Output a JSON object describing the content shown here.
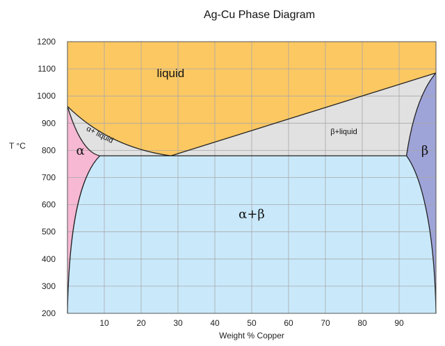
{
  "chart_data": {
    "type": "phase-diagram",
    "title": "Ag-Cu Phase Diagram",
    "xlabel": "Weight % Copper",
    "ylabel": "T °C",
    "xlim": [
      0,
      100
    ],
    "ylim": [
      200,
      1200
    ],
    "x_ticks": [
      10,
      20,
      30,
      40,
      50,
      60,
      70,
      80,
      90
    ],
    "y_ticks": [
      200,
      300,
      400,
      500,
      600,
      700,
      800,
      900,
      1000,
      1100,
      1200
    ],
    "grid": true,
    "colors": {
      "liquid": "#fcc862",
      "two_phase_liquid": "#e1e1e1",
      "alpha": "#f7b8d3",
      "beta": "#9ea3d8",
      "alpha_beta": "#c9e9fb",
      "grid": "#a8a8a8",
      "line": "#222222"
    },
    "points": {
      "ag_melting": {
        "x": 0,
        "y": 962
      },
      "cu_melting": {
        "x": 100,
        "y": 1085
      },
      "eutectic": {
        "x": 28.1,
        "y": 780
      },
      "alpha_max_solubility": {
        "x": 8.8,
        "y": 780
      },
      "beta_max_solubility": {
        "x": 92,
        "y": 780
      }
    },
    "regions": [
      {
        "id": "liquid",
        "label": "liquid",
        "x": 28,
        "y": 1070
      },
      {
        "id": "alpha_liquid",
        "label": "α+ liquid",
        "x": 8.5,
        "y": 850
      },
      {
        "id": "beta_liquid",
        "label": "β+liquid",
        "x": 75,
        "y": 860
      },
      {
        "id": "alpha",
        "label": "α",
        "x": 3.5,
        "y": 785
      },
      {
        "id": "beta",
        "label": "β",
        "x": 97,
        "y": 785
      },
      {
        "id": "alpha_beta",
        "label": "α+β",
        "x": 50,
        "y": 550
      }
    ]
  }
}
